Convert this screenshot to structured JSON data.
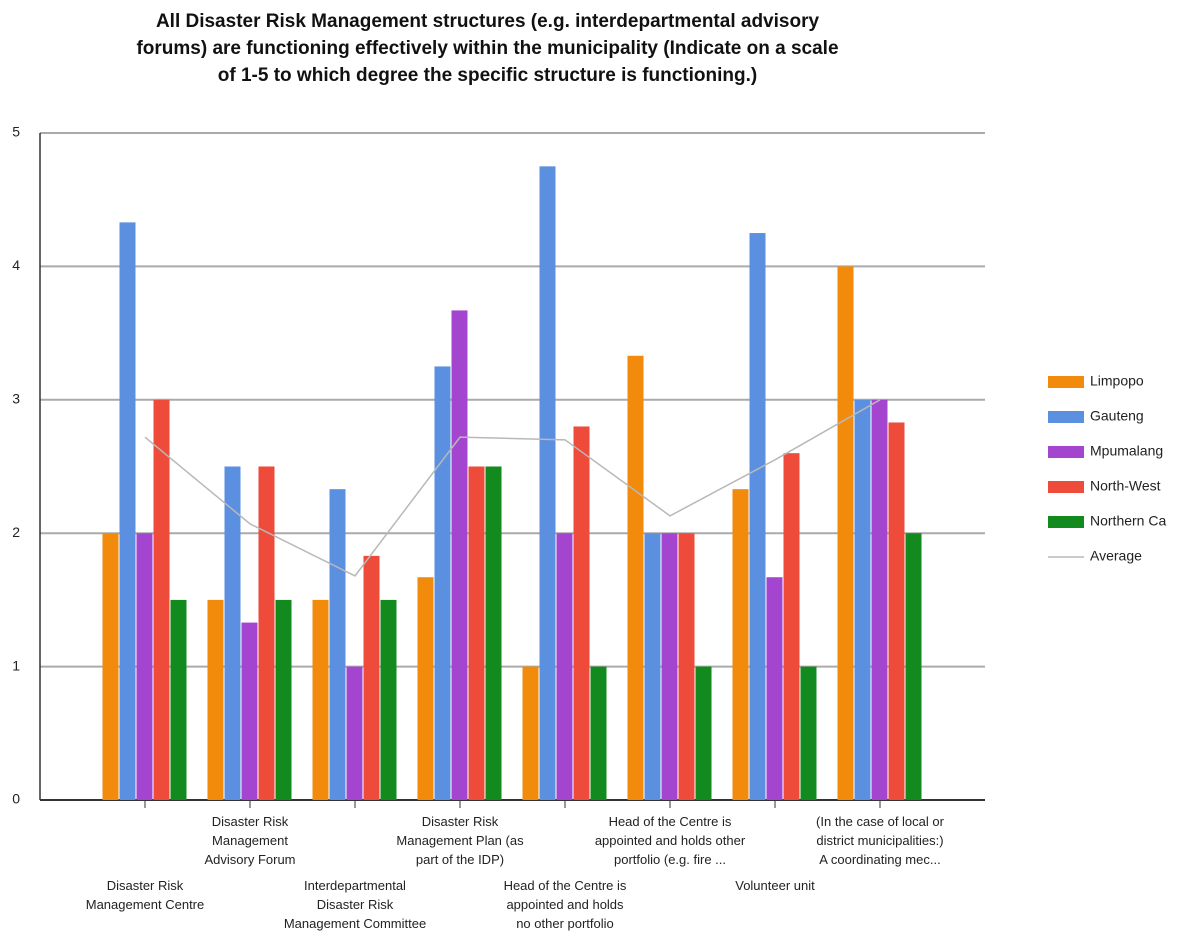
{
  "chart_data": {
    "type": "bar",
    "title": "All Disaster Risk Management structures (e.g. interdepartmental advisory\nforums) are functioning effectively within the municipality (Indicate on a scale\nof 1-5 to which degree the specific structure is functioning.)",
    "categories": [
      "Disaster Risk\nManagement Centre",
      "Disaster Risk\nManagement\nAdvisory Forum",
      "Interdepartmental\nDisaster Risk\nManagement Committee",
      "Disaster Risk\nManagement Plan (as\npart of the IDP)",
      "Head of the Centre is\nappointed and holds\nno other portfolio",
      "Head of the Centre is\nappointed and holds other\nportfolio (e.g. fire ...",
      "Volunteer unit",
      "(In the case of local or\ndistrict municipalities:)\nA coordinating mec..."
    ],
    "series": [
      {
        "name": "Limpopo",
        "color": "#f28a0c",
        "values": [
          2,
          1.5,
          1.5,
          1.67,
          1,
          3.33,
          2.33,
          4
        ]
      },
      {
        "name": "Gauteng",
        "color": "#5b8fe0",
        "values": [
          4.33,
          2.5,
          2.33,
          3.25,
          4.75,
          2,
          4.25,
          3
        ]
      },
      {
        "name": "Mpumalang",
        "color": "#a445d0",
        "values": [
          2,
          1.33,
          1,
          3.67,
          2,
          2,
          1.67,
          3
        ]
      },
      {
        "name": "North-West",
        "color": "#ee4b3a",
        "values": [
          3,
          2.5,
          1.83,
          2.5,
          2.8,
          2,
          2.6,
          2.83
        ]
      },
      {
        "name": "Northern Ca",
        "color": "#138a1e",
        "values": [
          1.5,
          1.5,
          1.5,
          2.5,
          1,
          1,
          1,
          2
        ]
      }
    ],
    "average": {
      "name": "Average",
      "color": "#b8b8b8",
      "values": [
        2.72,
        2.07,
        1.68,
        2.72,
        2.7,
        2.13,
        2.55,
        3
      ]
    },
    "ylim": [
      0,
      5
    ],
    "yticks": [
      0,
      1,
      2,
      3,
      4,
      5
    ],
    "grid": true,
    "legend": "right"
  }
}
